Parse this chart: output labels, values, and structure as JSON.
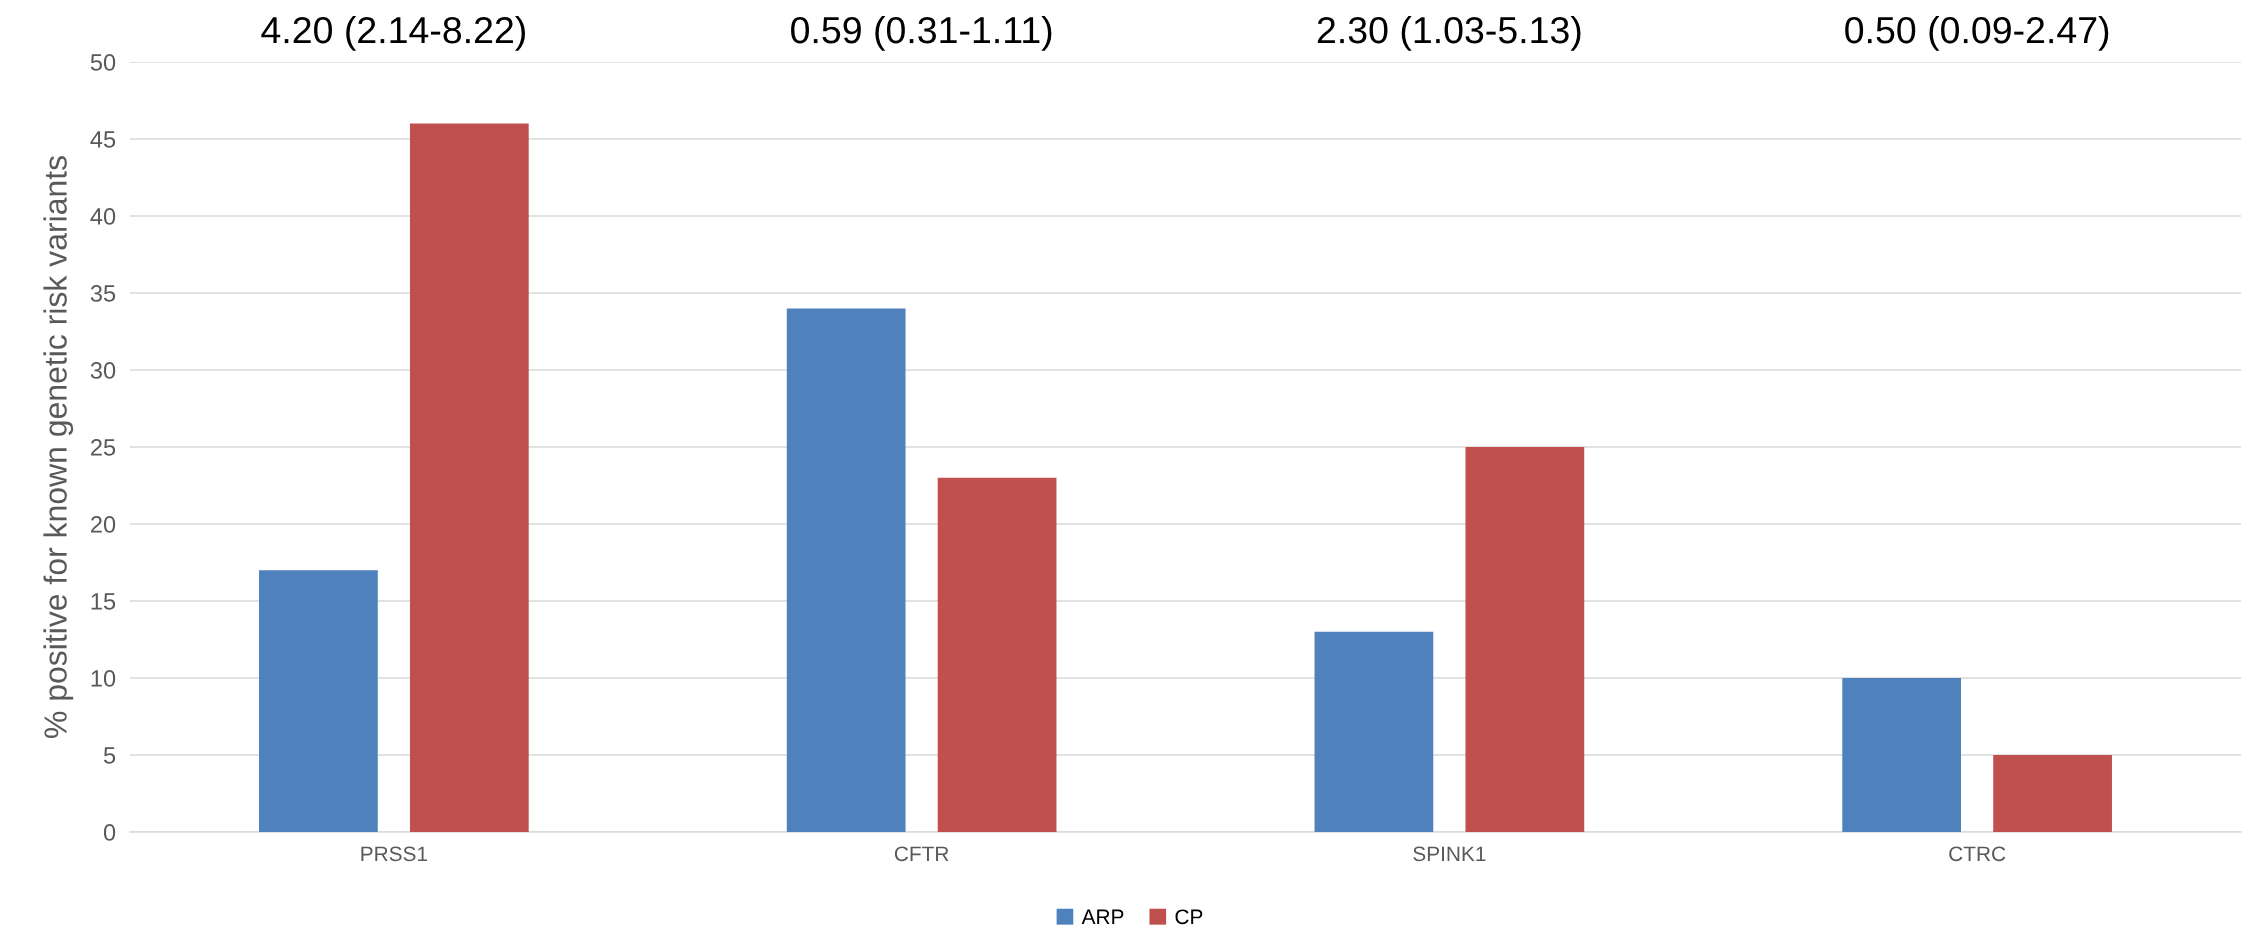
{
  "chart_data": {
    "type": "bar",
    "ylabel": "% positive for known genetic risk variants",
    "categories": [
      "PRSS1",
      "CFTR",
      "SPINK1",
      "CTRC"
    ],
    "series": [
      {
        "name": "ARP",
        "color": "#4f81bd",
        "values": [
          17,
          34,
          13,
          10
        ]
      },
      {
        "name": "CP",
        "color": "#c0504d",
        "values": [
          46,
          23,
          25,
          5
        ]
      }
    ],
    "ylim": [
      0,
      50
    ],
    "yticks": [
      0,
      5,
      10,
      15,
      20,
      25,
      30,
      35,
      40,
      45,
      50
    ],
    "grid": "y",
    "legend": "bottom",
    "annotations": [
      "4.20 (2.14-8.22)",
      "0.59 (0.31-1.11)",
      "2.30 (1.03-5.13)",
      "0.50 (0.09-2.47)"
    ]
  }
}
